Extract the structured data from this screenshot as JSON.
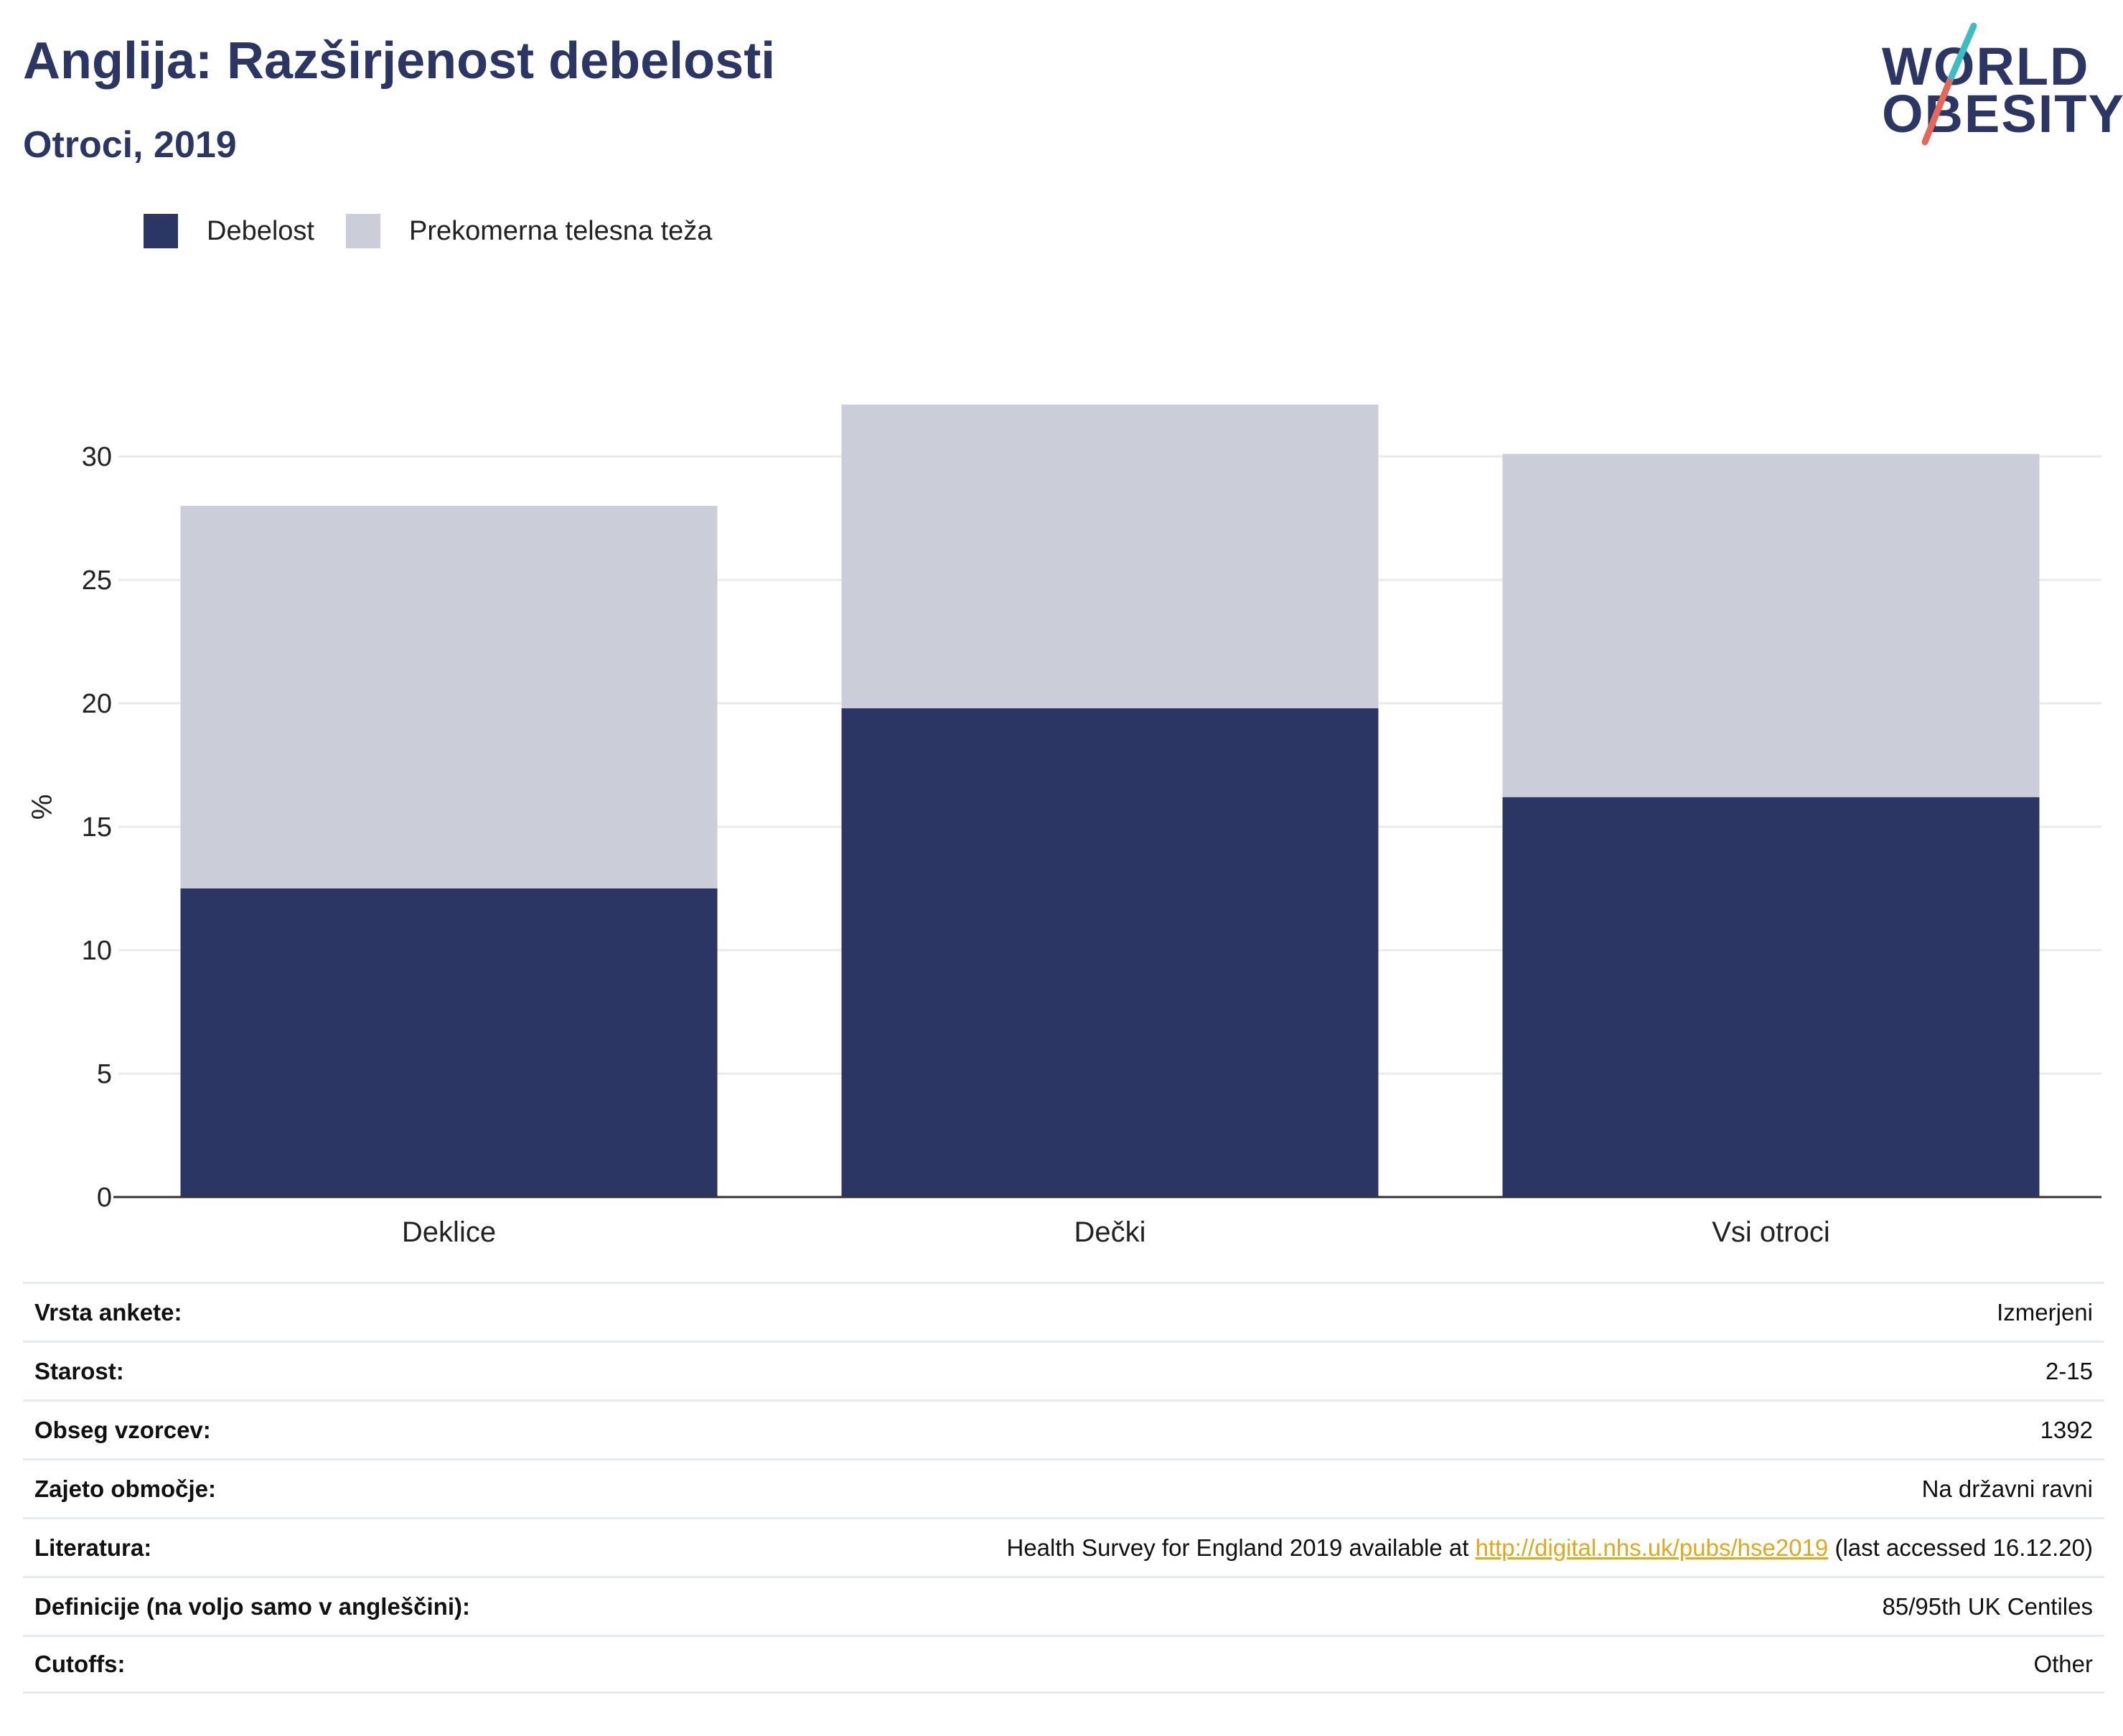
{
  "header": {
    "title": "Anglija: Razširjenost debelosti",
    "subtitle": "Otroci, 2019"
  },
  "logo": {
    "line1": "WORLD",
    "line2": "OBESITY",
    "colors": {
      "text": "#2b3664",
      "slash_top": "#3bbdc3",
      "slash_bottom": "#e4685a"
    }
  },
  "colors": {
    "obesity": "#2b3664",
    "overweight": "#cbcdd8",
    "grid": "#e8eaef",
    "axis": "#333333",
    "link": "#e0a91d"
  },
  "chart_data": {
    "type": "bar",
    "stacked": true,
    "categories": [
      "Deklice",
      "Dečki",
      "Vsi otroci"
    ],
    "series": [
      {
        "name": "Debelost",
        "values": [
          12.5,
          19.8,
          16.2
        ]
      },
      {
        "name": "Prekomerna telesna teža",
        "values": [
          15.5,
          12.3,
          13.9
        ]
      }
    ],
    "ylabel": "%",
    "ylim": [
      0,
      32.5
    ],
    "yticks": [
      0,
      5,
      10,
      15,
      20,
      25,
      30
    ],
    "grid": true,
    "legend": "top-left"
  },
  "info": [
    {
      "label": "Vrsta ankete:",
      "value": "Izmerjeni"
    },
    {
      "label": "Starost:",
      "value": "2-15"
    },
    {
      "label": "Obseg vzorcev:",
      "value": "1392"
    },
    {
      "label": "Zajeto območje:",
      "value": "Na državni ravni"
    },
    {
      "label": "Literatura:",
      "value_pre": "Health Survey for England 2019 available at ",
      "link": "http://digital.nhs.uk/pubs/hse2019",
      "value_post": " (last accessed 16.12.20)"
    },
    {
      "label": "Definicije (na voljo samo v angleščini):",
      "value": "85/95th UK Centiles"
    },
    {
      "label": "Cutoffs:",
      "value": "Other"
    }
  ]
}
